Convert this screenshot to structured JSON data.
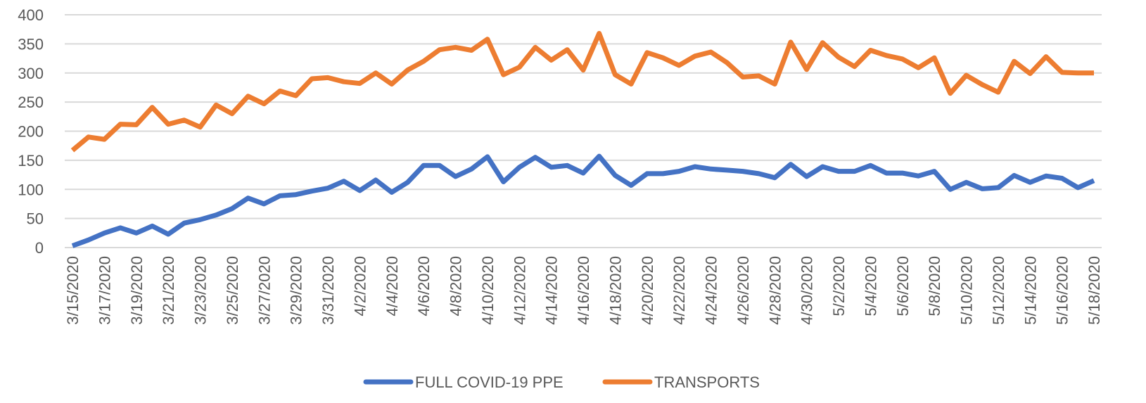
{
  "chart_data": {
    "type": "line",
    "categories": [
      "3/15/2020",
      null,
      "3/17/2020",
      null,
      "3/19/2020",
      null,
      "3/21/2020",
      null,
      "3/23/2020",
      null,
      "3/25/2020",
      null,
      "3/27/2020",
      null,
      "3/29/2020",
      null,
      "3/31/2020",
      null,
      "4/2/2020",
      null,
      "4/4/2020",
      null,
      "4/6/2020",
      null,
      "4/8/2020",
      null,
      "4/10/2020",
      null,
      "4/12/2020",
      null,
      "4/14/2020",
      null,
      "4/16/2020",
      null,
      "4/18/2020",
      null,
      "4/20/2020",
      null,
      "4/22/2020",
      null,
      "4/24/2020",
      null,
      "4/26/2020",
      null,
      "4/28/2020",
      null,
      "4/30/2020",
      null,
      "5/2/2020",
      null,
      "5/4/2020",
      null,
      "5/6/2020",
      null,
      "5/8/2020",
      null,
      "5/10/2020",
      null,
      "5/12/2020",
      null,
      "5/14/2020",
      null,
      "5/16/2020",
      null,
      "5/18/2020"
    ],
    "series": [
      {
        "name": "FULL COVID-19 PPE",
        "color": "#4472c4",
        "values": [
          3,
          13,
          25,
          34,
          25,
          37,
          23,
          42,
          48,
          56,
          67,
          85,
          75,
          89,
          91,
          97,
          102,
          114,
          98,
          116,
          95,
          112,
          141,
          141,
          122,
          135,
          156,
          113,
          138,
          155,
          138,
          141,
          128,
          157,
          124,
          107,
          127,
          127,
          131,
          139,
          135,
          133,
          131,
          127,
          120,
          143,
          122,
          139,
          131,
          131,
          141,
          128,
          128,
          123,
          131,
          100,
          112,
          101,
          103,
          124,
          112,
          123,
          119,
          103,
          115
        ]
      },
      {
        "name": "TRANSPORTS",
        "color": "#ed7d31",
        "values": [
          167,
          190,
          186,
          212,
          211,
          241,
          212,
          219,
          207,
          245,
          230,
          260,
          247,
          269,
          261,
          290,
          292,
          285,
          282,
          300,
          281,
          305,
          320,
          340,
          344,
          339,
          358,
          297,
          310,
          344,
          322,
          340,
          305,
          368,
          297,
          281,
          335,
          326,
          313,
          329,
          336,
          318,
          293,
          295,
          281,
          353,
          306,
          352,
          327,
          311,
          339,
          330,
          324,
          309,
          326,
          265,
          296,
          280,
          267,
          320,
          299,
          328,
          301,
          300,
          300
        ]
      }
    ],
    "ylim": [
      0,
      400
    ],
    "yticks": [
      0,
      50,
      100,
      150,
      200,
      250,
      300,
      350,
      400
    ],
    "grid": true,
    "legend": "bottom"
  }
}
